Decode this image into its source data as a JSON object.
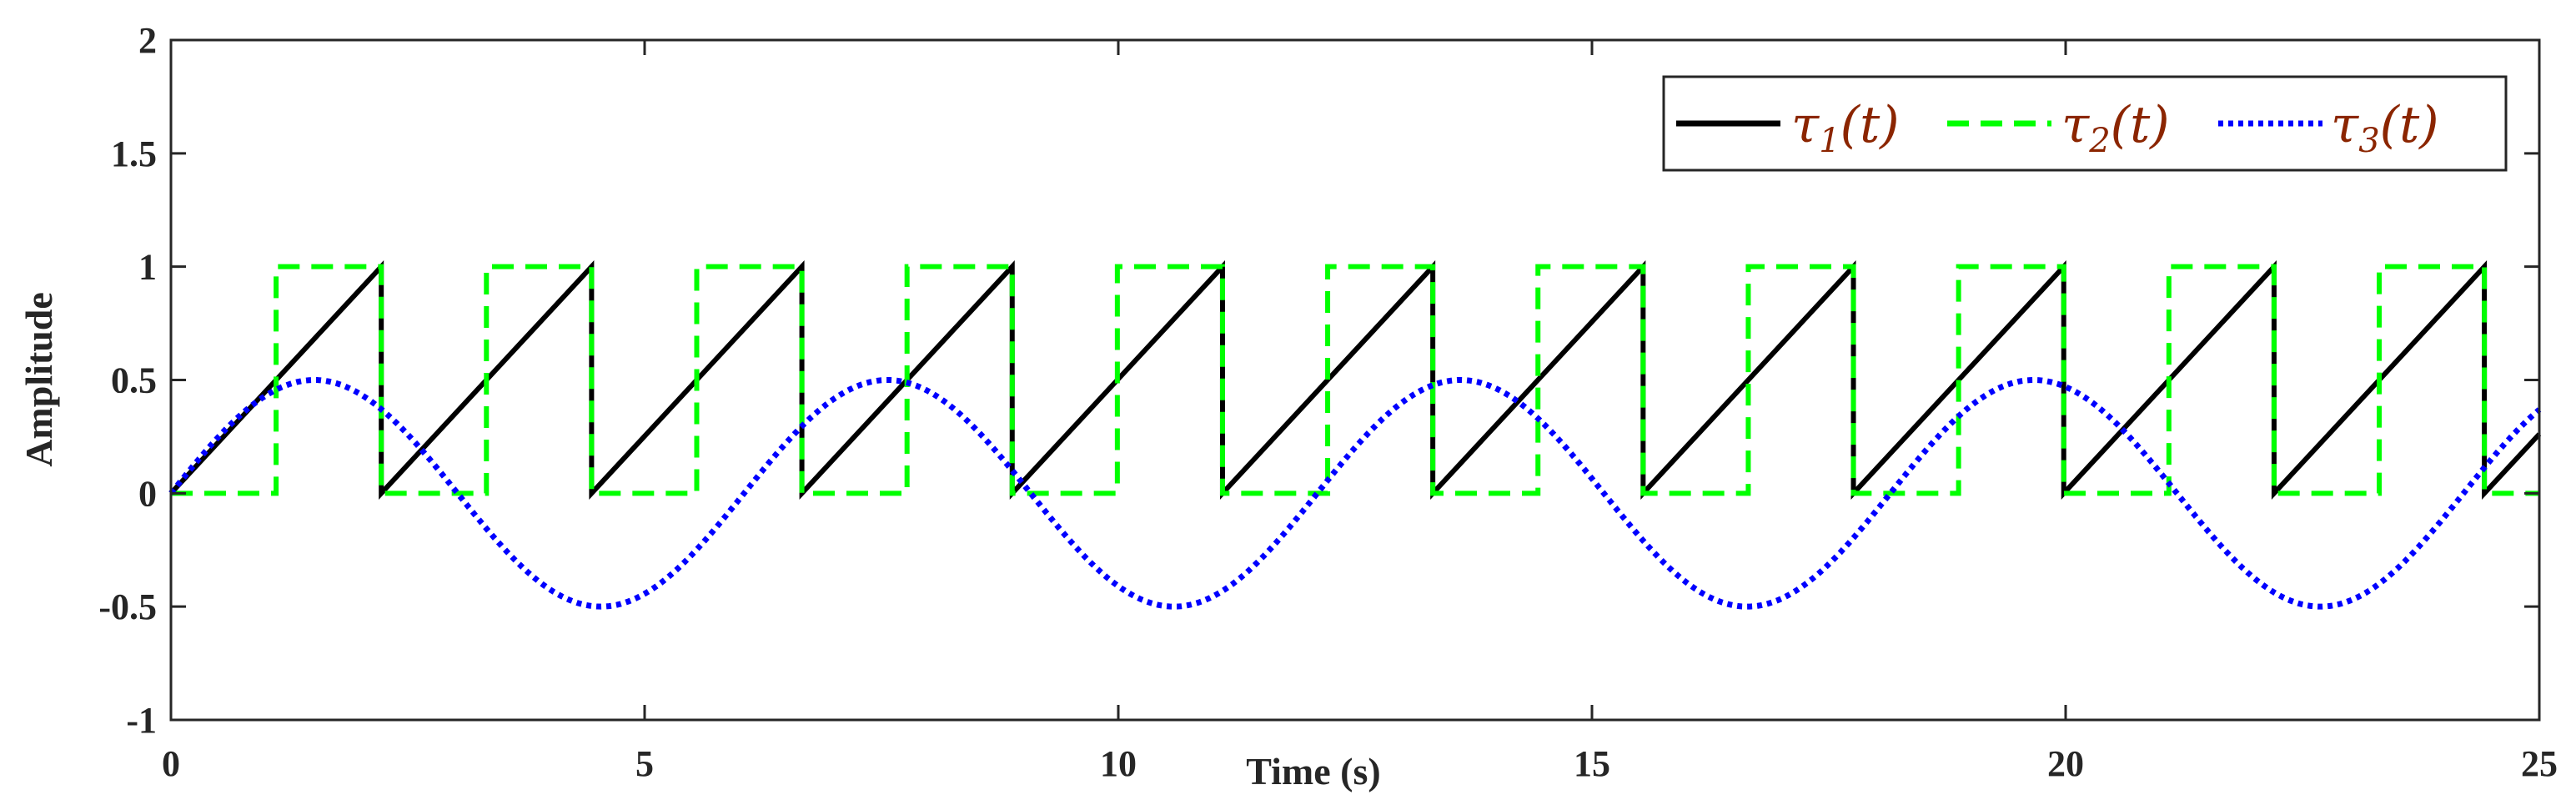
{
  "chart_data": {
    "type": "line",
    "title": "",
    "xlabel": "Time (s)",
    "ylabel": "Amplitude",
    "xlim": [
      0,
      25
    ],
    "ylim": [
      -1,
      2
    ],
    "xticks": [
      0,
      5,
      10,
      15,
      20,
      25
    ],
    "xtick_labels": [
      "0",
      "5",
      "10",
      "15",
      "20",
      "25"
    ],
    "yticks": [
      -1,
      -0.5,
      0,
      0.5,
      1,
      1.5,
      2
    ],
    "ytick_labels": [
      "-1",
      "-0.5",
      "0",
      "0.5",
      "1",
      "1.5",
      "2"
    ],
    "grid": false,
    "legend_position": "top-right",
    "text_color": "#8B2500",
    "series": [
      {
        "name": "τ1(t)",
        "label_main": "τ",
        "label_sub": "1",
        "label_arg": "(t)",
        "kind": "sawtooth",
        "period": 2.22,
        "amplitude": 1,
        "color": "#000000",
        "style": "solid"
      },
      {
        "name": "τ2(t)",
        "label_main": "τ",
        "label_sub": "2",
        "label_arg": "(t)",
        "kind": "square",
        "period": 2.22,
        "phase_offset": 1.11,
        "high": 1,
        "low": 0,
        "color": "#00FF00",
        "style": "dashed"
      },
      {
        "name": "τ3(t)",
        "label_main": "τ",
        "label_sub": "3",
        "label_arg": "(t)",
        "kind": "sine",
        "period": 6.05,
        "amplitude": 0.5,
        "color": "#0000FF",
        "style": "dotted"
      }
    ]
  }
}
